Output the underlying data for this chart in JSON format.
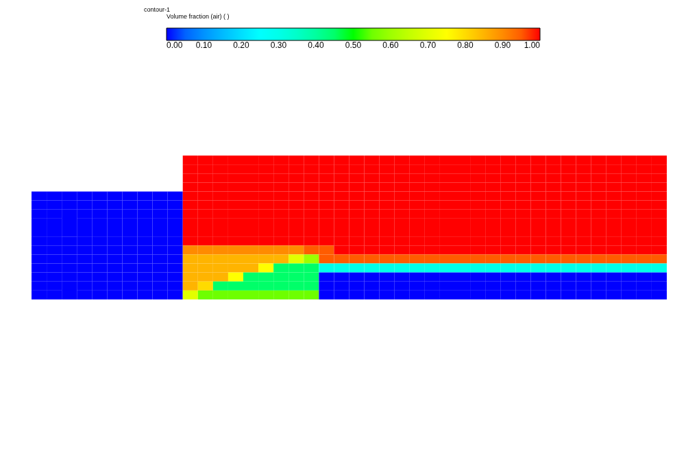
{
  "chart_data": {
    "type": "heatmap",
    "title": "contour-1",
    "clabel": "Volume fraction (air)  ( )",
    "clim": [
      0,
      1
    ],
    "cticks": [
      {
        "value": 0,
        "label": "0.00"
      },
      {
        "value": 0.1,
        "label": "0.10"
      },
      {
        "value": 0.2,
        "label": "0.20"
      },
      {
        "value": 0.3,
        "label": "0.30"
      },
      {
        "value": 0.4,
        "label": "0.40"
      },
      {
        "value": 0.5,
        "label": "0.50"
      },
      {
        "value": 0.6,
        "label": "0.60"
      },
      {
        "value": 0.7,
        "label": "0.70"
      },
      {
        "value": 0.8,
        "label": "0.80"
      },
      {
        "value": 0.9,
        "label": "0.90"
      },
      {
        "value": 1,
        "label": "1.00"
      }
    ],
    "categories": [
      null,
      null,
      null,
      null,
      null,
      null,
      null,
      null,
      null,
      null,
      null,
      null,
      null,
      null,
      null,
      null,
      null,
      null,
      null,
      null,
      null,
      null,
      null,
      null,
      null,
      null,
      null,
      null,
      null,
      null,
      null,
      null,
      null,
      null,
      null,
      null,
      null,
      null,
      null,
      null,
      null,
      null
    ],
    "y_categories": [
      null,
      null,
      null,
      null,
      null,
      null,
      null,
      null,
      null,
      null,
      null,
      null,
      null,
      null,
      null,
      null
    ],
    "cells": [
      [
        null,
        null,
        null,
        null,
        null,
        null,
        null,
        null,
        null,
        null,
        1,
        1,
        1,
        1,
        1,
        1,
        1,
        1,
        1,
        1,
        1,
        1,
        1,
        1,
        1,
        1,
        1,
        1,
        1,
        1,
        1,
        1,
        1,
        1,
        1,
        1,
        1,
        1,
        1,
        1,
        1,
        1
      ],
      [
        null,
        null,
        null,
        null,
        null,
        null,
        null,
        null,
        null,
        null,
        1,
        1,
        1,
        1,
        1,
        1,
        1,
        1,
        1,
        1,
        1,
        1,
        1,
        1,
        1,
        1,
        1,
        1,
        1,
        1,
        1,
        1,
        1,
        1,
        1,
        1,
        1,
        1,
        1,
        1,
        1,
        1
      ],
      [
        null,
        null,
        null,
        null,
        null,
        null,
        null,
        null,
        null,
        null,
        1,
        1,
        1,
        1,
        1,
        1,
        1,
        1,
        1,
        1,
        1,
        1,
        1,
        1,
        1,
        1,
        1,
        1,
        1,
        1,
        1,
        1,
        1,
        1,
        1,
        1,
        1,
        1,
        1,
        1,
        1,
        1
      ],
      [
        null,
        null,
        null,
        null,
        null,
        null,
        null,
        null,
        null,
        null,
        1,
        1,
        1,
        1,
        1,
        1,
        1,
        1,
        1,
        1,
        1,
        1,
        1,
        1,
        1,
        1,
        1,
        1,
        1,
        1,
        1,
        1,
        1,
        1,
        1,
        1,
        1,
        1,
        1,
        1,
        1,
        1
      ],
      [
        0,
        0,
        0,
        0,
        0,
        0,
        0,
        0,
        0,
        0,
        1,
        1,
        1,
        1,
        1,
        1,
        1,
        1,
        1,
        1,
        1,
        1,
        1,
        1,
        1,
        1,
        1,
        1,
        1,
        1,
        1,
        1,
        1,
        1,
        1,
        1,
        1,
        1,
        1,
        1,
        1,
        1
      ],
      [
        0,
        0,
        0,
        0,
        0,
        0,
        0,
        0,
        0,
        0,
        1,
        1,
        1,
        1,
        1,
        1,
        1,
        1,
        1,
        1,
        1,
        1,
        1,
        1,
        1,
        1,
        1,
        1,
        1,
        1,
        1,
        1,
        1,
        1,
        1,
        1,
        1,
        1,
        1,
        1,
        1,
        1
      ],
      [
        0,
        0,
        0,
        0,
        0,
        0,
        0,
        0,
        0,
        0,
        1,
        1,
        1,
        1,
        1,
        1,
        1,
        1,
        1,
        1,
        1,
        1,
        1,
        1,
        1,
        1,
        1,
        1,
        1,
        1,
        1,
        1,
        1,
        1,
        1,
        1,
        1,
        1,
        1,
        1,
        1,
        1
      ],
      [
        0,
        0,
        0,
        0,
        0,
        0,
        0,
        0,
        0,
        0,
        1,
        1,
        1,
        1,
        1,
        1,
        1,
        1,
        1,
        1,
        1,
        1,
        1,
        1,
        1,
        1,
        1,
        1,
        1,
        1,
        1,
        1,
        1,
        1,
        1,
        1,
        1,
        1,
        1,
        1,
        1,
        1
      ],
      [
        0,
        0,
        0,
        0,
        0,
        0,
        0,
        0,
        0,
        0,
        1,
        1,
        1,
        1,
        1,
        1,
        1,
        1,
        1,
        1,
        1,
        1,
        1,
        1,
        1,
        1,
        1,
        1,
        1,
        1,
        1,
        1,
        1,
        1,
        1,
        1,
        1,
        1,
        1,
        1,
        1,
        1
      ],
      [
        0,
        0,
        0,
        0,
        0,
        0,
        0,
        0,
        0,
        0,
        1,
        1,
        1,
        1,
        1,
        1,
        1,
        1,
        1,
        1,
        1,
        1,
        1,
        1,
        1,
        1,
        1,
        1,
        1,
        1,
        1,
        1,
        1,
        1,
        1,
        1,
        1,
        1,
        1,
        1,
        1,
        1
      ],
      [
        0,
        0,
        0,
        0,
        0,
        0,
        0,
        0,
        0,
        0,
        0.9,
        0.9,
        0.9,
        0.9,
        0.9,
        0.9,
        0.9,
        0.9,
        0.95,
        0.95,
        1,
        1,
        1,
        1,
        1,
        1,
        1,
        1,
        1,
        1,
        1,
        1,
        1,
        1,
        1,
        1,
        1,
        1,
        1,
        1,
        1,
        1
      ],
      [
        0,
        0,
        0,
        0,
        0,
        0,
        0,
        0,
        0,
        0,
        0.85,
        0.85,
        0.85,
        0.85,
        0.85,
        0.85,
        0.85,
        0.7,
        0.6,
        0.95,
        0.95,
        0.95,
        0.95,
        0.95,
        0.95,
        0.95,
        0.95,
        0.95,
        0.95,
        0.95,
        0.95,
        0.95,
        0.95,
        0.95,
        0.95,
        0.95,
        0.95,
        0.95,
        0.95,
        0.95,
        0.95,
        0.95
      ],
      [
        0,
        0,
        0,
        0,
        0,
        0,
        0,
        0,
        0,
        0,
        0.85,
        0.85,
        0.85,
        0.85,
        0.85,
        0.75,
        0.45,
        0.45,
        0.45,
        0.3,
        0.3,
        0.3,
        0.3,
        0.3,
        0.3,
        0.3,
        0.3,
        0.3,
        0.3,
        0.3,
        0.3,
        0.3,
        0.3,
        0.3,
        0.3,
        0.3,
        0.3,
        0.3,
        0.3,
        0.3,
        0.3,
        0.3
      ],
      [
        0,
        0,
        0,
        0,
        0,
        0,
        0,
        0,
        0,
        0,
        0.85,
        0.85,
        0.85,
        0.75,
        0.45,
        0.45,
        0.45,
        0.45,
        0.45,
        0,
        0,
        0,
        0,
        0,
        0,
        0,
        0,
        0,
        0,
        0,
        0,
        0,
        0,
        0,
        0,
        0,
        0,
        0,
        0,
        0,
        0,
        0
      ],
      [
        0,
        0,
        0,
        0,
        0,
        0,
        0,
        0,
        0,
        0,
        0.85,
        0.8,
        0.45,
        0.45,
        0.45,
        0.45,
        0.45,
        0.45,
        0.45,
        0,
        0,
        0,
        0,
        0,
        0,
        0,
        0,
        0,
        0,
        0,
        0,
        0,
        0,
        0,
        0,
        0,
        0,
        0,
        0,
        0,
        0,
        0
      ],
      [
        0,
        0,
        0,
        0,
        0,
        0,
        0,
        0,
        0,
        0,
        0.7,
        0.55,
        0.55,
        0.55,
        0.55,
        0.55,
        0.55,
        0.55,
        0.55,
        0,
        0,
        0,
        0,
        0,
        0,
        0,
        0,
        0,
        0,
        0,
        0,
        0,
        0,
        0,
        0,
        0,
        0,
        0,
        0,
        0,
        0,
        0
      ]
    ]
  }
}
